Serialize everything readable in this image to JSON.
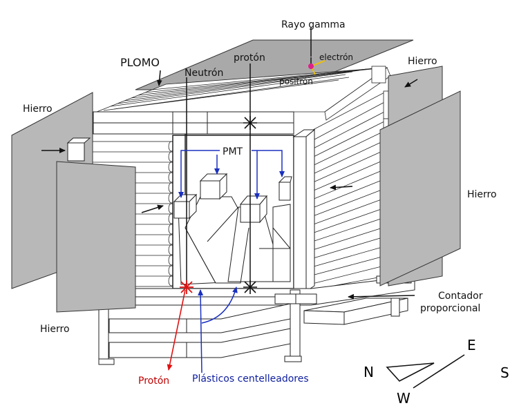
{
  "labels": {
    "rayo_gamma": "Rayo gamma",
    "electron": "electrón",
    "positron": "positrón",
    "plomo": "PLOMO",
    "neutron": "Neutrón",
    "proton_top": "protón",
    "hierro_left": "Hierro",
    "hierro_right_top": "Hierro",
    "hierro_right": "Hierro",
    "hierro_bottom": "Hierro",
    "pmt": "PMT",
    "contador": "Contador",
    "proporcional": "proporcional",
    "proton_bottom": "Protón",
    "plasticos": "Plásticos centelleadores"
  },
  "compass": {
    "n": "N",
    "e": "E",
    "s": "S",
    "w": "W"
  },
  "colors": {
    "iron_plate": "#b8b8b8",
    "lead_plate": "#a9a9a9",
    "proton_track": "#e01010",
    "pmt_arrows": "#1a30c0",
    "gamma_point": "#e0208a",
    "electron_track": "#f0c000"
  }
}
